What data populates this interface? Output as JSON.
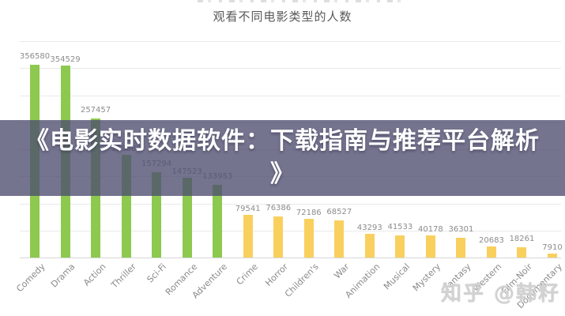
{
  "header": {
    "title": "观看不同电影类型的人数"
  },
  "banner": {
    "line1": "《电影实时数据软件：下载指南与推荐平台解析",
    "line2": "》",
    "bg_rgba": "rgba(77,77,112,0.78)",
    "text_color": "#ffffff"
  },
  "watermark": {
    "text": "知乎 @韩籽"
  },
  "chart_data": {
    "type": "bar",
    "title": "观看不同电影类型的人数",
    "categories": [
      "Comedy",
      "Drama",
      "Action",
      "Thriller",
      "Sci-Fi",
      "Romance",
      "Adventure",
      "Crime",
      "Horror",
      "Children's",
      "War",
      "Animation",
      "Musical",
      "Mystery",
      "Fantasy",
      "Western",
      "Film-Noir",
      "Documentary"
    ],
    "values": [
      356580,
      354529,
      257457,
      189680,
      157294,
      147523,
      133953,
      79541,
      76386,
      72186,
      68527,
      43293,
      41533,
      40178,
      36301,
      20683,
      18261,
      7910
    ],
    "xlabel": "",
    "ylabel": "",
    "ylim": [
      0,
      400000
    ],
    "gridline_interval": 50000,
    "grid": "horizontal",
    "legend": "none",
    "value_labels_shown": true,
    "value_label_hidden_by_banner": "Thriller",
    "bar_color_green": "#8dc94f",
    "bar_color_yellow": "#f9d05e",
    "green_bar_count": 7,
    "gridline_color": "#e9e9e9"
  }
}
